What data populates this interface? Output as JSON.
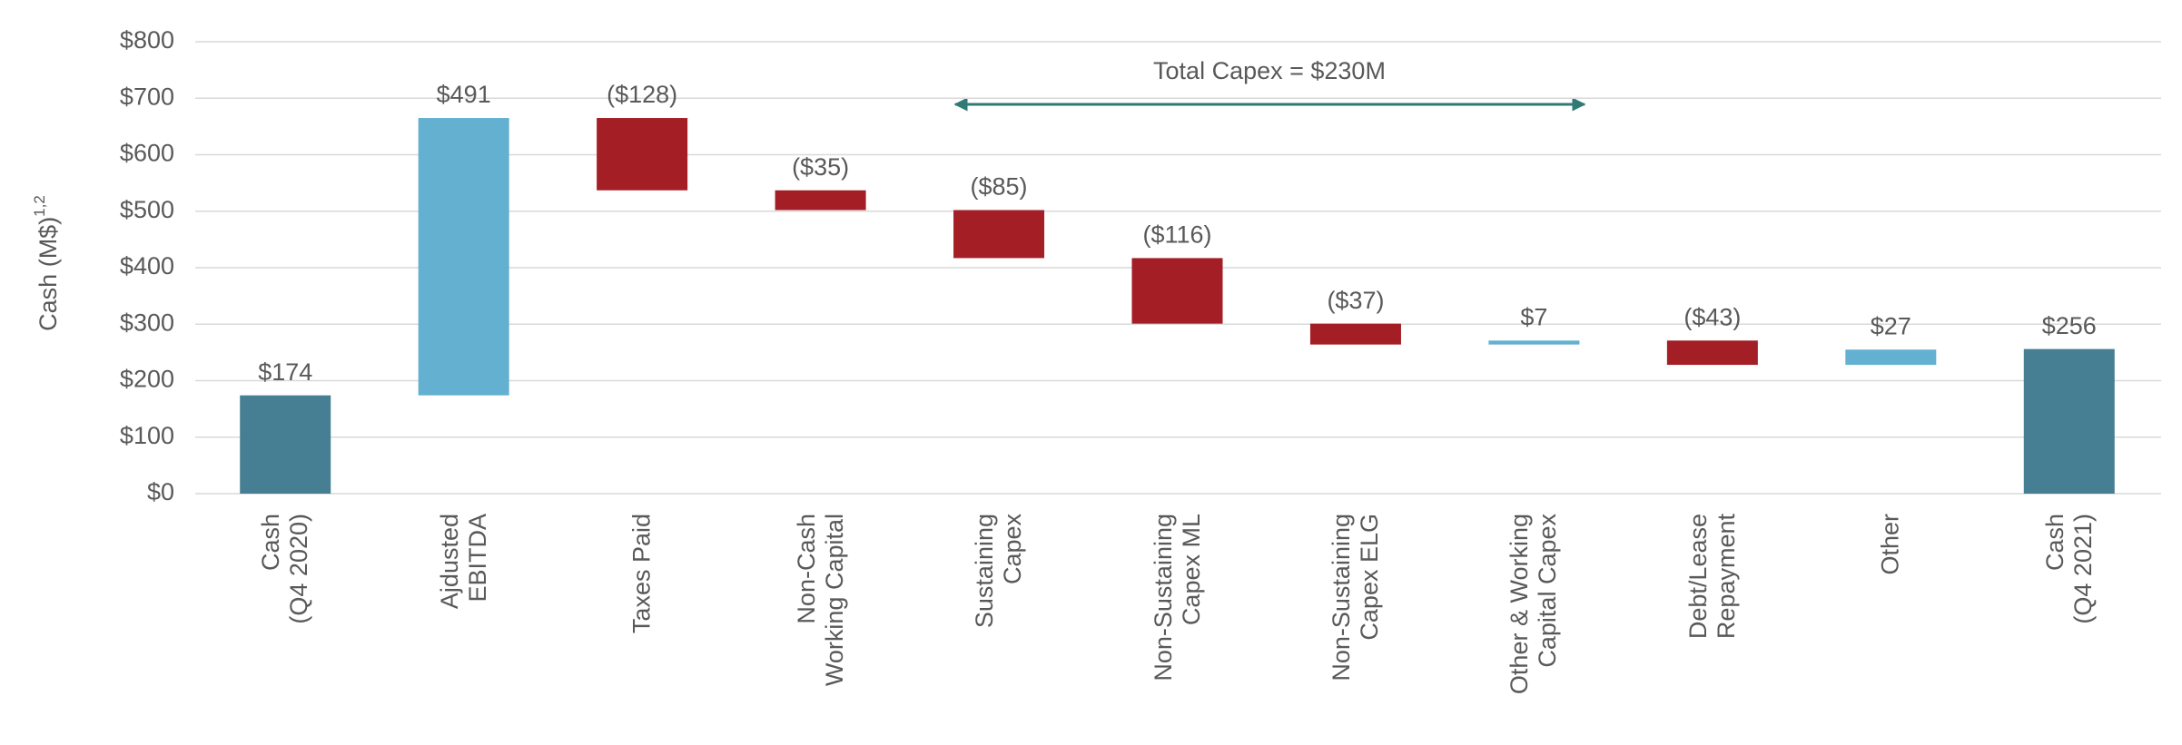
{
  "chart_data": {
    "type": "waterfall",
    "ylabel": "Cash (M$)",
    "ylabel_superscript": "1,2",
    "annotation": "Total Capex = $230M",
    "categories": [
      "Cash\n(Q4 2020)",
      "Ajdusted\nEBITDA",
      "Taxes Paid",
      "Non-Cash\nWorking Capital",
      "Sustaining\nCapex",
      "Non-Sustaining\nCapex ML",
      "Non-Sustaining\nCapex ELG",
      "Other & Working\nCapital Capex",
      "Debt/Lease\nRepayment",
      "Other",
      "Cash\n(Q4 2021)"
    ],
    "values": [
      174,
      491,
      -128,
      -35,
      -85,
      -116,
      -37,
      7,
      -43,
      27,
      256
    ],
    "value_labels": [
      "$174",
      "$491",
      "($128)",
      "($35)",
      "($85)",
      "($116)",
      "($37)",
      "$7",
      "($43)",
      "$27",
      "$256"
    ],
    "is_total": [
      true,
      false,
      false,
      false,
      false,
      false,
      false,
      false,
      false,
      false,
      true
    ],
    "colors": [
      "#467f93",
      "#63b0d1",
      "#a31e25",
      "#a31e25",
      "#a31e25",
      "#a31e25",
      "#a31e25",
      "#63b0d1",
      "#a31e25",
      "#63b0d1",
      "#467f93"
    ],
    "ylim": [
      0,
      800
    ],
    "yticks": [
      {
        "value": 0,
        "label": "$0"
      },
      {
        "value": 100,
        "label": "$100"
      },
      {
        "value": 200,
        "label": "$200"
      },
      {
        "value": 300,
        "label": "$300"
      },
      {
        "value": 400,
        "label": "$400"
      },
      {
        "value": 500,
        "label": "$500"
      },
      {
        "value": 600,
        "label": "$600"
      },
      {
        "value": 700,
        "label": "$700"
      },
      {
        "value": 800,
        "label": "$800"
      }
    ],
    "grid": true
  }
}
